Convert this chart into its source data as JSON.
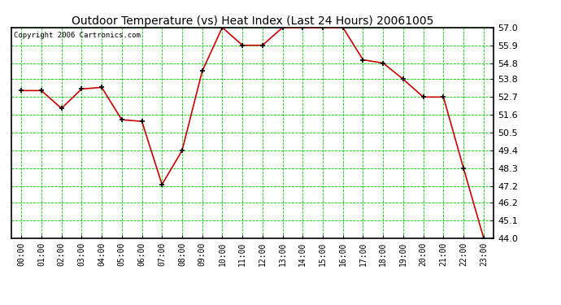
{
  "title": "Outdoor Temperature (vs) Heat Index (Last 24 Hours) 20061005",
  "copyright": "Copyright 2006 Cartronics.com",
  "x_labels": [
    "00:00",
    "01:00",
    "02:00",
    "03:00",
    "04:00",
    "05:00",
    "06:00",
    "07:00",
    "08:00",
    "09:00",
    "10:00",
    "11:00",
    "12:00",
    "13:00",
    "14:00",
    "15:00",
    "16:00",
    "17:00",
    "18:00",
    "19:00",
    "20:00",
    "21:00",
    "22:00",
    "23:00"
  ],
  "y_values": [
    53.1,
    53.1,
    52.0,
    53.2,
    53.3,
    51.3,
    51.2,
    47.3,
    49.4,
    54.3,
    57.0,
    55.9,
    55.9,
    57.0,
    57.0,
    57.0,
    57.0,
    55.0,
    54.8,
    53.8,
    52.7,
    52.7,
    48.3,
    44.0
  ],
  "ylim_min": 44.0,
  "ylim_max": 57.0,
  "ytick_values": [
    44.0,
    45.1,
    46.2,
    47.2,
    48.3,
    49.4,
    50.5,
    51.6,
    52.7,
    53.8,
    54.8,
    55.9,
    57.0
  ],
  "line_color": "#cc0000",
  "marker_color": "#000000",
  "bg_color": "#ffffff",
  "plot_bg_color": "#ffffff",
  "grid_color": "#00cc00",
  "title_color": "#000000",
  "axis_label_color": "#000000",
  "border_color": "#000000",
  "figwidth": 6.9,
  "figheight": 3.75,
  "dpi": 100
}
